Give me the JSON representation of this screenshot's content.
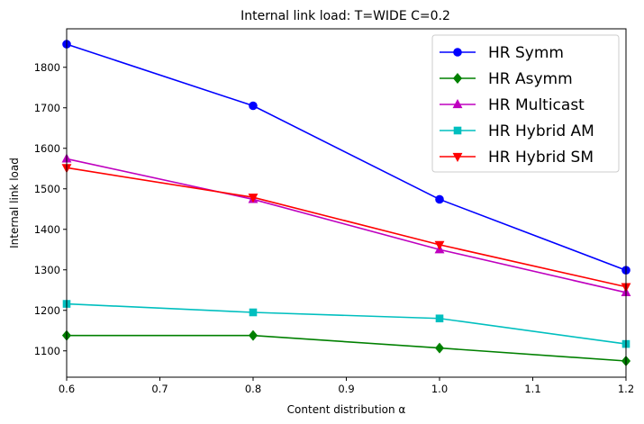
{
  "chart_data": {
    "type": "line",
    "title": "Internal link load: T=WIDE C=0.2",
    "xlabel": "Content distribution α",
    "ylabel": "Internal link load",
    "xlim": [
      0.6,
      1.2
    ],
    "ylim": [
      1035,
      1895
    ],
    "xticks": [
      "0.6",
      "0.7",
      "0.8",
      "0.9",
      "1.0",
      "1.1",
      "1.2"
    ],
    "yticks": [
      "1100",
      "1200",
      "1300",
      "1400",
      "1500",
      "1600",
      "1700",
      "1800"
    ],
    "grid": false,
    "legend_position": "top-right",
    "x": [
      0.6,
      0.8,
      1.0,
      1.2
    ],
    "series": [
      {
        "name": "HR Symm",
        "color": "#0000ff",
        "marker": "circle",
        "values": [
          1857,
          1705,
          1474,
          1299
        ]
      },
      {
        "name": "HR Asymm",
        "color": "#008000",
        "marker": "diamond",
        "values": [
          1138,
          1138,
          1107,
          1075
        ]
      },
      {
        "name": "HR Multicast",
        "color": "#bf00bf",
        "marker": "triangle-up",
        "values": [
          1574,
          1474,
          1350,
          1244
        ]
      },
      {
        "name": "HR Hybrid AM",
        "color": "#00bfbf",
        "marker": "square",
        "values": [
          1216,
          1195,
          1180,
          1117
        ]
      },
      {
        "name": "HR Hybrid SM",
        "color": "#ff0000",
        "marker": "triangle-down",
        "values": [
          1552,
          1479,
          1362,
          1258
        ]
      }
    ]
  }
}
